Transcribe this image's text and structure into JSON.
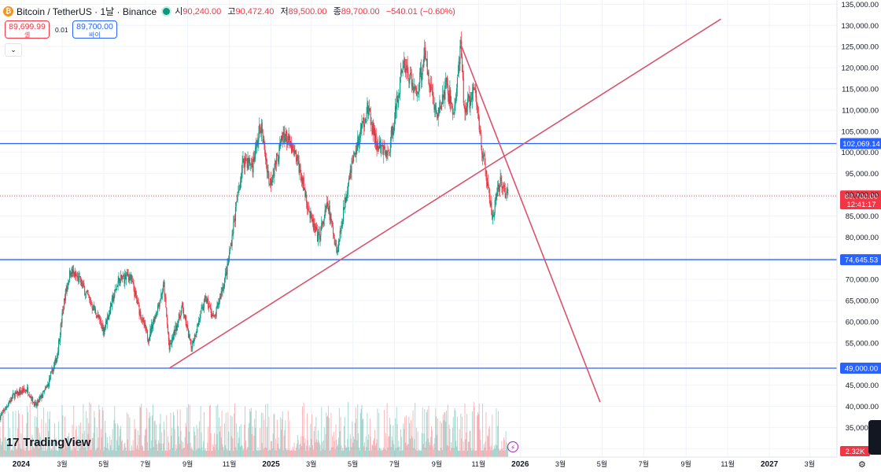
{
  "header": {
    "symbol": "Bitcoin / TetherUS · 1날 · Binance",
    "open_label": "시",
    "open": "90,240.00",
    "high_label": "고",
    "high": "90,472.40",
    "low_label": "저",
    "low": "89,500.00",
    "close_label": "종",
    "close": "89,700.00",
    "change": "−540.01 (−0.60%)"
  },
  "trade": {
    "sell_price": "89,699.99",
    "sell_label": "셀",
    "buy_price": "89,700.00",
    "buy_label": "바이",
    "spread": "0.01"
  },
  "brand": {
    "logo_text": "TradingView",
    "logo_mark": "17"
  },
  "colors": {
    "up": "#089981",
    "down": "#f23645",
    "level_line": "#2962ff",
    "trend_line": "#d9536b",
    "last_price": "#f23645"
  },
  "chart_data": {
    "type": "candlestick",
    "y_range": [
      28000,
      136000
    ],
    "x_range": [
      "2023-12-01",
      "2027-04-10"
    ],
    "y_ticks": [
      135000,
      130000,
      125000,
      120000,
      115000,
      110000,
      105000,
      100000,
      95000,
      90000,
      85000,
      80000,
      75000,
      70000,
      65000,
      60000,
      55000,
      50000,
      45000,
      40000,
      35000,
      30000
    ],
    "y_tick_labels": [
      "135,000.00",
      "130,000.00",
      "125,000.00",
      "120,000.00",
      "115,000.00",
      "110,000.00",
      "105,000.00",
      "100,000.00",
      "95,000.00",
      "90,000.00",
      "85,000.00",
      "80,000.00",
      "",
      "70,000.00",
      "65,000.00",
      "60,000.00",
      "55,000.00",
      "",
      "45,000.00",
      "40,000.00",
      "35,000.00",
      "30,000.00"
    ],
    "x_ticks": [
      {
        "date": "2024-01-01",
        "label": "2024"
      },
      {
        "date": "2024-03-01",
        "label": "3월"
      },
      {
        "date": "2024-05-01",
        "label": "5월"
      },
      {
        "date": "2024-07-01",
        "label": "7월"
      },
      {
        "date": "2024-09-01",
        "label": "9월"
      },
      {
        "date": "2024-11-01",
        "label": "11월"
      },
      {
        "date": "2025-01-01",
        "label": "2025"
      },
      {
        "date": "2025-03-01",
        "label": "3월"
      },
      {
        "date": "2025-05-01",
        "label": "5월"
      },
      {
        "date": "2025-07-01",
        "label": "7월"
      },
      {
        "date": "2025-09-01",
        "label": "9월"
      },
      {
        "date": "2025-11-01",
        "label": "11월"
      },
      {
        "date": "2026-01-01",
        "label": "2026"
      },
      {
        "date": "2026-03-01",
        "label": "3월"
      },
      {
        "date": "2026-05-01",
        "label": "5월"
      },
      {
        "date": "2026-07-01",
        "label": "7월"
      },
      {
        "date": "2026-09-01",
        "label": "9월"
      },
      {
        "date": "2026-11-01",
        "label": "11월"
      },
      {
        "date": "2027-01-01",
        "label": "2027"
      },
      {
        "date": "2027-03-01",
        "label": "3월"
      }
    ],
    "price_path": [
      [
        "2023-12-01",
        37500
      ],
      [
        "2023-12-20",
        42500
      ],
      [
        "2024-01-10",
        44000
      ],
      [
        "2024-01-22",
        40000
      ],
      [
        "2024-02-08",
        44500
      ],
      [
        "2024-02-22",
        51500
      ],
      [
        "2024-03-05",
        66000
      ],
      [
        "2024-03-13",
        72000
      ],
      [
        "2024-03-28",
        69500
      ],
      [
        "2024-04-18",
        62500
      ],
      [
        "2024-05-01",
        58000
      ],
      [
        "2024-05-22",
        69500
      ],
      [
        "2024-06-08",
        71000
      ],
      [
        "2024-06-25",
        61000
      ],
      [
        "2024-07-05",
        56000
      ],
      [
        "2024-07-28",
        68500
      ],
      [
        "2024-08-05",
        53500
      ],
      [
        "2024-08-24",
        63500
      ],
      [
        "2024-09-06",
        54000
      ],
      [
        "2024-09-27",
        65500
      ],
      [
        "2024-10-10",
        60500
      ],
      [
        "2024-10-29",
        72500
      ],
      [
        "2024-11-12",
        88500
      ],
      [
        "2024-11-22",
        98500
      ],
      [
        "2024-12-05",
        97000
      ],
      [
        "2024-12-17",
        106500
      ],
      [
        "2024-12-30",
        92500
      ],
      [
        "2025-01-20",
        104500
      ],
      [
        "2025-02-10",
        97500
      ],
      [
        "2025-02-28",
        84500
      ],
      [
        "2025-03-11",
        79500
      ],
      [
        "2025-03-25",
        87500
      ],
      [
        "2025-04-08",
        76500
      ],
      [
        "2025-04-25",
        94500
      ],
      [
        "2025-05-22",
        110500
      ],
      [
        "2025-06-05",
        101500
      ],
      [
        "2025-06-22",
        99500
      ],
      [
        "2025-07-14",
        121500
      ],
      [
        "2025-08-02",
        113500
      ],
      [
        "2025-08-14",
        123000
      ],
      [
        "2025-09-01",
        108000
      ],
      [
        "2025-09-15",
        116000
      ],
      [
        "2025-09-26",
        109000
      ],
      [
        "2025-10-06",
        124800
      ],
      [
        "2025-10-11",
        110000
      ],
      [
        "2025-10-27",
        114500
      ],
      [
        "2025-11-06",
        101000
      ],
      [
        "2025-11-21",
        84500
      ],
      [
        "2025-12-03",
        93000
      ],
      [
        "2025-12-14",
        89700
      ]
    ],
    "volume_scale": "2.32K",
    "horizontal_levels": [
      {
        "price": 102069.14,
        "label": "102,069.14"
      },
      {
        "price": 74645.53,
        "label": "74,645.53"
      },
      {
        "price": 49000.0,
        "label": "49,000.00"
      }
    ],
    "last_price": {
      "price": 89700.0,
      "label": "89,700.00",
      "countdown": "12:41:17"
    },
    "trend_lines": [
      {
        "from": [
          "2024-08-05",
          49000
        ],
        "to": [
          "2026-10-22",
          131500
        ]
      },
      {
        "from": [
          "2025-10-06",
          125500
        ],
        "to": [
          "2026-04-28",
          41000
        ]
      }
    ]
  }
}
